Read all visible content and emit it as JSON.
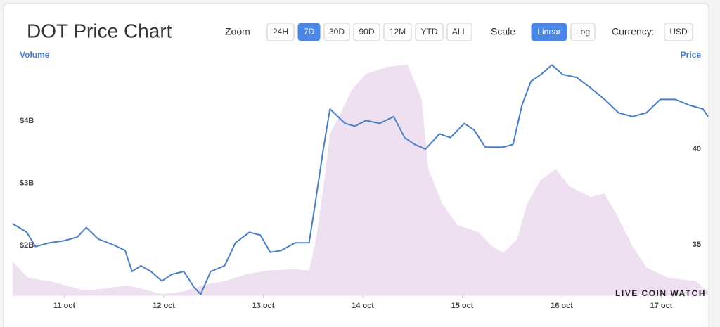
{
  "header": {
    "title": "DOT Price Chart",
    "zoom": {
      "label": "Zoom",
      "options": [
        "24H",
        "7D",
        "30D",
        "90D",
        "12M",
        "YTD",
        "ALL"
      ],
      "active": 1
    },
    "scale": {
      "label": "Scale",
      "options": [
        "Linear",
        "Log"
      ],
      "active": 0
    },
    "currency": {
      "label": "Currency:",
      "options": [
        "USD"
      ],
      "active": null
    }
  },
  "watermark": "LIVE COIN WATCH",
  "chart_data": {
    "type": "line",
    "title": "DOT Price Chart",
    "xlim": [
      10.48,
      17.47
    ],
    "xticks": [
      {
        "value": 11,
        "label": "11 oct"
      },
      {
        "value": 12,
        "label": "12 oct"
      },
      {
        "value": 13,
        "label": "13 oct"
      },
      {
        "value": 14,
        "label": "14 oct"
      },
      {
        "value": 15,
        "label": "15 oct"
      },
      {
        "value": 16,
        "label": "16 oct"
      },
      {
        "value": 17,
        "label": "17 oct"
      }
    ],
    "ylim": [
      1200000000,
      4930000000
    ],
    "yticks": [
      {
        "value": 2000000000,
        "label": "$2B"
      },
      {
        "value": 3000000000,
        "label": "$3B"
      },
      {
        "value": 4000000000,
        "label": "$4B"
      }
    ],
    "y2lim": [
      32.35,
      44.49
    ],
    "y2ticks": [
      35,
      40
    ],
    "grid": false,
    "series": [
      {
        "name": "Volume",
        "type": "area",
        "color": "#eee0f1",
        "x": [
          10.48,
          10.64,
          10.85,
          10.99,
          11.2,
          11.41,
          11.62,
          11.77,
          11.98,
          12.19,
          12.4,
          12.61,
          12.83,
          13.04,
          13.32,
          13.46,
          13.53,
          13.6,
          13.67,
          13.78,
          13.89,
          14.03,
          14.24,
          14.45,
          14.59,
          14.66,
          14.8,
          14.95,
          15.16,
          15.3,
          15.41,
          15.55,
          15.65,
          15.79,
          15.94,
          16.08,
          16.29,
          16.43,
          16.57,
          16.71,
          16.85,
          17.07,
          17.35,
          17.47
        ],
        "values": [
          1740000000,
          1480000000,
          1430000000,
          1370000000,
          1280000000,
          1310000000,
          1360000000,
          1310000000,
          1220000000,
          1260000000,
          1370000000,
          1430000000,
          1540000000,
          1600000000,
          1620000000,
          1600000000,
          2100000000,
          2890000000,
          3800000000,
          4140000000,
          4500000000,
          4760000000,
          4870000000,
          4910000000,
          4360000000,
          3230000000,
          2670000000,
          2330000000,
          2220000000,
          1990000000,
          1880000000,
          2100000000,
          2670000000,
          3060000000,
          3230000000,
          2950000000,
          2780000000,
          2840000000,
          2440000000,
          1990000000,
          1650000000,
          1480000000,
          1430000000,
          1260000000
        ]
      },
      {
        "name": "Price",
        "type": "line",
        "axis": "y2",
        "color": "#4a7fc8",
        "x": [
          10.48,
          10.62,
          10.71,
          10.85,
          10.99,
          11.13,
          11.22,
          11.34,
          11.49,
          11.61,
          11.68,
          11.77,
          11.87,
          11.98,
          12.08,
          12.2,
          12.3,
          12.37,
          12.47,
          12.61,
          12.72,
          12.86,
          12.97,
          13.07,
          13.18,
          13.32,
          13.46,
          13.52,
          13.6,
          13.67,
          13.82,
          13.92,
          14.03,
          14.17,
          14.31,
          14.42,
          14.52,
          14.63,
          14.77,
          14.88,
          15.02,
          15.12,
          15.23,
          15.41,
          15.51,
          15.6,
          15.69,
          15.79,
          15.9,
          16.01,
          16.15,
          16.29,
          16.43,
          16.57,
          16.71,
          16.85,
          16.99,
          17.14,
          17.28,
          17.42,
          17.47
        ],
        "values": [
          36.1,
          35.66,
          34.9,
          35.1,
          35.2,
          35.4,
          35.9,
          35.3,
          35.0,
          34.7,
          33.6,
          33.9,
          33.6,
          33.1,
          33.45,
          33.6,
          32.8,
          32.4,
          33.6,
          33.9,
          35.1,
          35.65,
          35.5,
          34.6,
          34.7,
          35.1,
          35.1,
          37.1,
          39.9,
          42.1,
          41.35,
          41.2,
          41.5,
          41.35,
          41.7,
          40.6,
          40.25,
          40.0,
          40.8,
          40.6,
          41.35,
          41.0,
          40.1,
          40.1,
          40.25,
          42.3,
          43.55,
          43.9,
          44.4,
          43.9,
          43.75,
          43.2,
          42.6,
          41.9,
          41.7,
          41.9,
          42.6,
          42.6,
          42.3,
          42.1,
          41.7
        ]
      }
    ]
  }
}
